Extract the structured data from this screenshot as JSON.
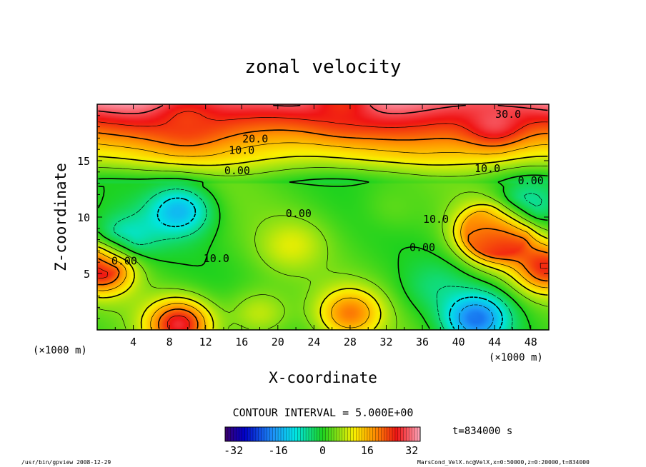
{
  "chart_data": {
    "type": "heatmap",
    "title": "zonal velocity",
    "xlabel": "X-coordinate",
    "ylabel": "Z-coordinate",
    "x_units": "(×1000 m)",
    "z_units": "(×1000 m)",
    "xlim": [
      0,
      50
    ],
    "zlim": [
      0,
      20
    ],
    "x_ticks": [
      "4",
      "8",
      "12",
      "16",
      "20",
      "24",
      "28",
      "32",
      "36",
      "40",
      "44",
      "48"
    ],
    "z_ticks": [
      "5",
      "10",
      "15"
    ],
    "contour_interval_text": "CONTOUR INTERVAL = 5.000E+00",
    "contour_labels": [
      {
        "text": "30.0",
        "x": 45.5,
        "z": 18.8
      },
      {
        "text": "20.0",
        "x": 17.5,
        "z": 16.6
      },
      {
        "text": "10.0",
        "x": 16.0,
        "z": 15.6
      },
      {
        "text": "0.00",
        "x": 15.5,
        "z": 13.8
      },
      {
        "text": "10.0",
        "x": 43.2,
        "z": 14.0
      },
      {
        "text": "0.00",
        "x": 48.0,
        "z": 12.9
      },
      {
        "text": "0.00",
        "x": 22.3,
        "z": 10.0
      },
      {
        "text": "10.0",
        "x": 37.5,
        "z": 9.5
      },
      {
        "text": "0.00",
        "x": 36.0,
        "z": 7.0
      },
      {
        "text": "10.0",
        "x": 13.2,
        "z": 6.0
      },
      {
        "text": "0.00",
        "x": 3.0,
        "z": 5.8
      }
    ],
    "features": [
      {
        "x": 27.0,
        "z": 20.0,
        "u": 25
      },
      {
        "x": 10.0,
        "z": 18.5,
        "u": 24
      },
      {
        "x": 44.0,
        "z": 18.5,
        "u": 30
      },
      {
        "x": 9.0,
        "z": 10.5,
        "u": -14
      },
      {
        "x": 3.0,
        "z": 8.0,
        "u": -10
      },
      {
        "x": 21.5,
        "z": 7.5,
        "u": 10
      },
      {
        "x": 44.5,
        "z": 8.2,
        "u": 30
      },
      {
        "x": 43.0,
        "z": 9.0,
        "u": 15
      },
      {
        "x": 47.5,
        "z": 11.0,
        "u": -8
      },
      {
        "x": 0.5,
        "z": 5.5,
        "u": 30
      },
      {
        "x": 49.8,
        "z": 5.5,
        "u": 25
      },
      {
        "x": 9.0,
        "z": 0.5,
        "u": 28
      },
      {
        "x": 28.0,
        "z": 1.5,
        "u": 20
      },
      {
        "x": 42.0,
        "z": 1.0,
        "u": -20
      },
      {
        "x": 18.0,
        "z": 1.5,
        "u": 8
      },
      {
        "x": 37.5,
        "z": 4.0,
        "u": -4
      },
      {
        "x": 33.0,
        "z": 11.0,
        "u": 3
      }
    ],
    "colorbar": {
      "min": -35,
      "max": 35,
      "tick_labels": [
        "-32",
        "-16",
        "0",
        "16",
        "32"
      ],
      "tick_values": [
        -32,
        -16,
        0,
        16,
        32
      ]
    },
    "time_label": "t=834000 s"
  },
  "footer": {
    "left": "/usr/bin/gpview   2008-12-29",
    "right": "MarsCond_VelX.nc@VelX,x=0:50000,z=0:20000,t=834000"
  }
}
